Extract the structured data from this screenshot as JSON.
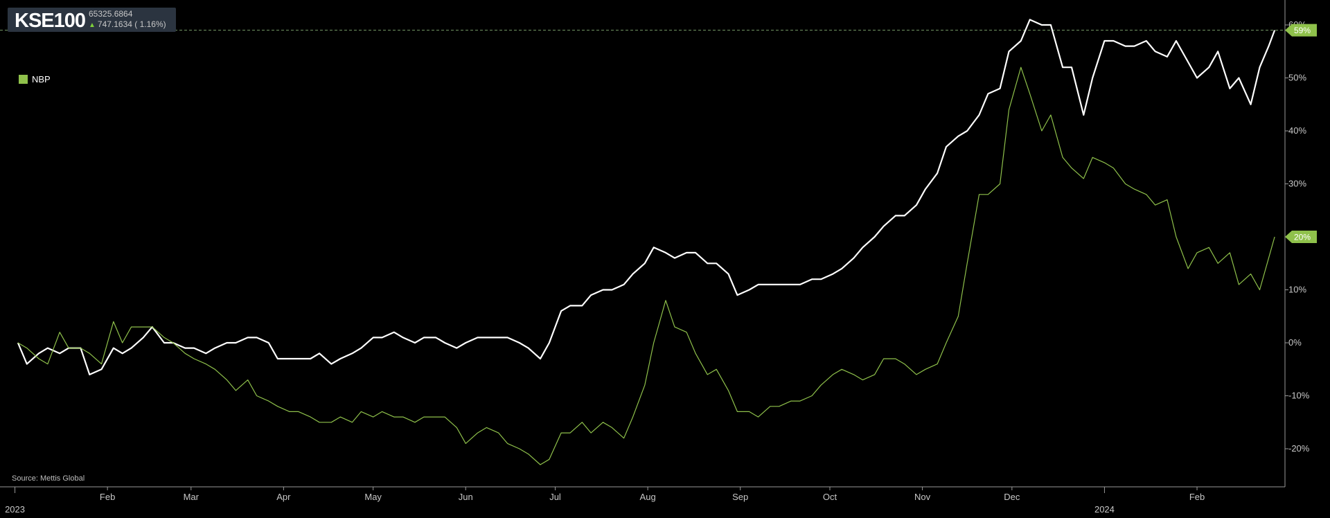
{
  "header": {
    "ticker": "KSE100",
    "price": "65325.6864",
    "change": "747.1634 ( 1.16%)",
    "change_direction": "up-arrow-icon"
  },
  "legend": {
    "items": [
      {
        "label": "NBP",
        "color": "#8fc14b"
      }
    ]
  },
  "source": "Source: Mettis Global",
  "colors": {
    "background": "#000000",
    "kse100": "#ffffff",
    "nbp": "#8fc14b",
    "tag_fill": "#8fc14b"
  },
  "chart_data": {
    "type": "line",
    "x_start": "2023-01-02",
    "x_end": "2024-02-27",
    "xlim": [
      "2022-12-27",
      "2024-03-01"
    ],
    "ylim": [
      -27,
      62
    ],
    "y_ticks": [
      "60%",
      "50%",
      "40%",
      "30%",
      "20%",
      "10%",
      "0%",
      "-10%",
      "-20%"
    ],
    "y_tick_values": [
      60,
      50,
      40,
      30,
      20,
      10,
      0,
      -10,
      -20
    ],
    "x_tick_labels": [
      {
        "label": "Feb",
        "date": "2023-02-01"
      },
      {
        "label": "Mar",
        "date": "2023-03-01"
      },
      {
        "label": "Apr",
        "date": "2023-04-01"
      },
      {
        "label": "May",
        "date": "2023-05-01"
      },
      {
        "label": "Jun",
        "date": "2023-06-01"
      },
      {
        "label": "Jul",
        "date": "2023-07-01"
      },
      {
        "label": "Aug",
        "date": "2023-08-01"
      },
      {
        "label": "Sep",
        "date": "2023-09-01"
      },
      {
        "label": "Oct",
        "date": "2023-10-01"
      },
      {
        "label": "Nov",
        "date": "2023-11-01"
      },
      {
        "label": "Dec",
        "date": "2023-12-01"
      },
      {
        "label": "Feb",
        "date": "2024-02-01"
      }
    ],
    "x_year_labels": [
      {
        "label": "2023",
        "date": "2023-01-01"
      },
      {
        "label": "2024",
        "date": "2024-01-01"
      }
    ],
    "reference_line": 59,
    "end_labels": [
      {
        "series": "KSE100",
        "text": "59%",
        "value": 59
      },
      {
        "series": "NBP",
        "text": "20%",
        "value": 20
      }
    ],
    "series": [
      {
        "name": "KSE100",
        "color": "#ffffff",
        "points": [
          [
            "2023-01-02",
            0
          ],
          [
            "2023-01-05",
            -4
          ],
          [
            "2023-01-09",
            -2
          ],
          [
            "2023-01-12",
            -1
          ],
          [
            "2023-01-16",
            -2
          ],
          [
            "2023-01-19",
            -1
          ],
          [
            "2023-01-23",
            -1
          ],
          [
            "2023-01-26",
            -6
          ],
          [
            "2023-01-30",
            -5
          ],
          [
            "2023-02-03",
            -1
          ],
          [
            "2023-02-06",
            -2
          ],
          [
            "2023-02-09",
            -1
          ],
          [
            "2023-02-13",
            1
          ],
          [
            "2023-02-16",
            3
          ],
          [
            "2023-02-20",
            0
          ],
          [
            "2023-02-23",
            0
          ],
          [
            "2023-02-27",
            -1
          ],
          [
            "2023-03-02",
            -1
          ],
          [
            "2023-03-06",
            -2
          ],
          [
            "2023-03-09",
            -1
          ],
          [
            "2023-03-13",
            0
          ],
          [
            "2023-03-16",
            0
          ],
          [
            "2023-03-20",
            1
          ],
          [
            "2023-03-23",
            1
          ],
          [
            "2023-03-27",
            0
          ],
          [
            "2023-03-30",
            -3
          ],
          [
            "2023-04-03",
            -3
          ],
          [
            "2023-04-06",
            -3
          ],
          [
            "2023-04-10",
            -3
          ],
          [
            "2023-04-13",
            -2
          ],
          [
            "2023-04-17",
            -4
          ],
          [
            "2023-04-20",
            -3
          ],
          [
            "2023-04-24",
            -2
          ],
          [
            "2023-04-27",
            -1
          ],
          [
            "2023-05-01",
            1
          ],
          [
            "2023-05-04",
            1
          ],
          [
            "2023-05-08",
            2
          ],
          [
            "2023-05-11",
            1
          ],
          [
            "2023-05-15",
            0
          ],
          [
            "2023-05-18",
            1
          ],
          [
            "2023-05-22",
            1
          ],
          [
            "2023-05-25",
            0
          ],
          [
            "2023-05-29",
            -1
          ],
          [
            "2023-06-01",
            0
          ],
          [
            "2023-06-05",
            1
          ],
          [
            "2023-06-08",
            1
          ],
          [
            "2023-06-12",
            1
          ],
          [
            "2023-06-15",
            1
          ],
          [
            "2023-06-19",
            0
          ],
          [
            "2023-06-22",
            -1
          ],
          [
            "2023-06-26",
            -3
          ],
          [
            "2023-06-29",
            0
          ],
          [
            "2023-07-03",
            6
          ],
          [
            "2023-07-06",
            7
          ],
          [
            "2023-07-10",
            7
          ],
          [
            "2023-07-13",
            9
          ],
          [
            "2023-07-17",
            10
          ],
          [
            "2023-07-20",
            10
          ],
          [
            "2023-07-24",
            11
          ],
          [
            "2023-07-27",
            13
          ],
          [
            "2023-07-31",
            15
          ],
          [
            "2023-08-03",
            18
          ],
          [
            "2023-08-07",
            17
          ],
          [
            "2023-08-10",
            16
          ],
          [
            "2023-08-14",
            17
          ],
          [
            "2023-08-17",
            17
          ],
          [
            "2023-08-21",
            15
          ],
          [
            "2023-08-24",
            15
          ],
          [
            "2023-08-28",
            13
          ],
          [
            "2023-08-31",
            9
          ],
          [
            "2023-09-04",
            10
          ],
          [
            "2023-09-07",
            11
          ],
          [
            "2023-09-11",
            11
          ],
          [
            "2023-09-14",
            11
          ],
          [
            "2023-09-18",
            11
          ],
          [
            "2023-09-21",
            11
          ],
          [
            "2023-09-25",
            12
          ],
          [
            "2023-09-28",
            12
          ],
          [
            "2023-10-02",
            13
          ],
          [
            "2023-10-05",
            14
          ],
          [
            "2023-10-09",
            16
          ],
          [
            "2023-10-12",
            18
          ],
          [
            "2023-10-16",
            20
          ],
          [
            "2023-10-19",
            22
          ],
          [
            "2023-10-23",
            24
          ],
          [
            "2023-10-26",
            24
          ],
          [
            "2023-10-30",
            26
          ],
          [
            "2023-11-02",
            29
          ],
          [
            "2023-11-06",
            32
          ],
          [
            "2023-11-09",
            37
          ],
          [
            "2023-11-13",
            39
          ],
          [
            "2023-11-16",
            40
          ],
          [
            "2023-11-20",
            43
          ],
          [
            "2023-11-23",
            47
          ],
          [
            "2023-11-27",
            48
          ],
          [
            "2023-11-30",
            55
          ],
          [
            "2023-12-04",
            57
          ],
          [
            "2023-12-07",
            61
          ],
          [
            "2023-12-11",
            60
          ],
          [
            "2023-12-14",
            60
          ],
          [
            "2023-12-18",
            52
          ],
          [
            "2023-12-21",
            52
          ],
          [
            "2023-12-25",
            43
          ],
          [
            "2023-12-28",
            50
          ],
          [
            "2024-01-01",
            57
          ],
          [
            "2024-01-04",
            57
          ],
          [
            "2024-01-08",
            56
          ],
          [
            "2024-01-11",
            56
          ],
          [
            "2024-01-15",
            57
          ],
          [
            "2024-01-18",
            55
          ],
          [
            "2024-01-22",
            54
          ],
          [
            "2024-01-25",
            57
          ],
          [
            "2024-01-29",
            53
          ],
          [
            "2024-02-01",
            50
          ],
          [
            "2024-02-05",
            52
          ],
          [
            "2024-02-08",
            55
          ],
          [
            "2024-02-12",
            48
          ],
          [
            "2024-02-15",
            50
          ],
          [
            "2024-02-19",
            45
          ],
          [
            "2024-02-22",
            52
          ],
          [
            "2024-02-25",
            56
          ],
          [
            "2024-02-27",
            59
          ]
        ]
      },
      {
        "name": "NBP",
        "color": "#8fc14b",
        "points": [
          [
            "2023-01-02",
            0
          ],
          [
            "2023-01-05",
            -1
          ],
          [
            "2023-01-09",
            -3
          ],
          [
            "2023-01-12",
            -4
          ],
          [
            "2023-01-16",
            2
          ],
          [
            "2023-01-19",
            -1
          ],
          [
            "2023-01-23",
            -1
          ],
          [
            "2023-01-26",
            -2
          ],
          [
            "2023-01-30",
            -4
          ],
          [
            "2023-02-03",
            4
          ],
          [
            "2023-02-06",
            0
          ],
          [
            "2023-02-09",
            3
          ],
          [
            "2023-02-13",
            3
          ],
          [
            "2023-02-16",
            3
          ],
          [
            "2023-02-20",
            1
          ],
          [
            "2023-02-23",
            0
          ],
          [
            "2023-02-27",
            -2
          ],
          [
            "2023-03-02",
            -3
          ],
          [
            "2023-03-06",
            -4
          ],
          [
            "2023-03-09",
            -5
          ],
          [
            "2023-03-13",
            -7
          ],
          [
            "2023-03-16",
            -9
          ],
          [
            "2023-03-20",
            -7
          ],
          [
            "2023-03-23",
            -10
          ],
          [
            "2023-03-27",
            -11
          ],
          [
            "2023-03-30",
            -12
          ],
          [
            "2023-04-03",
            -13
          ],
          [
            "2023-04-06",
            -13
          ],
          [
            "2023-04-10",
            -14
          ],
          [
            "2023-04-13",
            -15
          ],
          [
            "2023-04-17",
            -15
          ],
          [
            "2023-04-20",
            -14
          ],
          [
            "2023-04-24",
            -15
          ],
          [
            "2023-04-27",
            -13
          ],
          [
            "2023-05-01",
            -14
          ],
          [
            "2023-05-04",
            -13
          ],
          [
            "2023-05-08",
            -14
          ],
          [
            "2023-05-11",
            -14
          ],
          [
            "2023-05-15",
            -15
          ],
          [
            "2023-05-18",
            -14
          ],
          [
            "2023-05-22",
            -14
          ],
          [
            "2023-05-25",
            -14
          ],
          [
            "2023-05-29",
            -16
          ],
          [
            "2023-06-01",
            -19
          ],
          [
            "2023-06-05",
            -17
          ],
          [
            "2023-06-08",
            -16
          ],
          [
            "2023-06-12",
            -17
          ],
          [
            "2023-06-15",
            -19
          ],
          [
            "2023-06-19",
            -20
          ],
          [
            "2023-06-22",
            -21
          ],
          [
            "2023-06-26",
            -23
          ],
          [
            "2023-06-29",
            -22
          ],
          [
            "2023-07-03",
            -17
          ],
          [
            "2023-07-06",
            -17
          ],
          [
            "2023-07-10",
            -15
          ],
          [
            "2023-07-13",
            -17
          ],
          [
            "2023-07-17",
            -15
          ],
          [
            "2023-07-20",
            -16
          ],
          [
            "2023-07-24",
            -18
          ],
          [
            "2023-07-27",
            -14
          ],
          [
            "2023-07-31",
            -8
          ],
          [
            "2023-08-03",
            0
          ],
          [
            "2023-08-07",
            8
          ],
          [
            "2023-08-10",
            3
          ],
          [
            "2023-08-14",
            2
          ],
          [
            "2023-08-17",
            -2
          ],
          [
            "2023-08-21",
            -6
          ],
          [
            "2023-08-24",
            -5
          ],
          [
            "2023-08-28",
            -9
          ],
          [
            "2023-08-31",
            -13
          ],
          [
            "2023-09-04",
            -13
          ],
          [
            "2023-09-07",
            -14
          ],
          [
            "2023-09-11",
            -12
          ],
          [
            "2023-09-14",
            -12
          ],
          [
            "2023-09-18",
            -11
          ],
          [
            "2023-09-21",
            -11
          ],
          [
            "2023-09-25",
            -10
          ],
          [
            "2023-09-28",
            -8
          ],
          [
            "2023-10-02",
            -6
          ],
          [
            "2023-10-05",
            -5
          ],
          [
            "2023-10-09",
            -6
          ],
          [
            "2023-10-12",
            -7
          ],
          [
            "2023-10-16",
            -6
          ],
          [
            "2023-10-19",
            -3
          ],
          [
            "2023-10-23",
            -3
          ],
          [
            "2023-10-26",
            -4
          ],
          [
            "2023-10-30",
            -6
          ],
          [
            "2023-11-02",
            -5
          ],
          [
            "2023-11-06",
            -4
          ],
          [
            "2023-11-09",
            0
          ],
          [
            "2023-11-13",
            5
          ],
          [
            "2023-11-16",
            15
          ],
          [
            "2023-11-20",
            28
          ],
          [
            "2023-11-23",
            28
          ],
          [
            "2023-11-27",
            30
          ],
          [
            "2023-11-30",
            44
          ],
          [
            "2023-12-04",
            52
          ],
          [
            "2023-12-07",
            47
          ],
          [
            "2023-12-11",
            40
          ],
          [
            "2023-12-14",
            43
          ],
          [
            "2023-12-18",
            35
          ],
          [
            "2023-12-21",
            33
          ],
          [
            "2023-12-25",
            31
          ],
          [
            "2023-12-28",
            35
          ],
          [
            "2024-01-01",
            34
          ],
          [
            "2024-01-04",
            33
          ],
          [
            "2024-01-08",
            30
          ],
          [
            "2024-01-11",
            29
          ],
          [
            "2024-01-15",
            28
          ],
          [
            "2024-01-18",
            26
          ],
          [
            "2024-01-22",
            27
          ],
          [
            "2024-01-25",
            20
          ],
          [
            "2024-01-29",
            14
          ],
          [
            "2024-02-01",
            17
          ],
          [
            "2024-02-05",
            18
          ],
          [
            "2024-02-08",
            15
          ],
          [
            "2024-02-12",
            17
          ],
          [
            "2024-02-15",
            11
          ],
          [
            "2024-02-19",
            13
          ],
          [
            "2024-02-22",
            10
          ],
          [
            "2024-02-25",
            16
          ],
          [
            "2024-02-27",
            20
          ]
        ]
      }
    ]
  }
}
